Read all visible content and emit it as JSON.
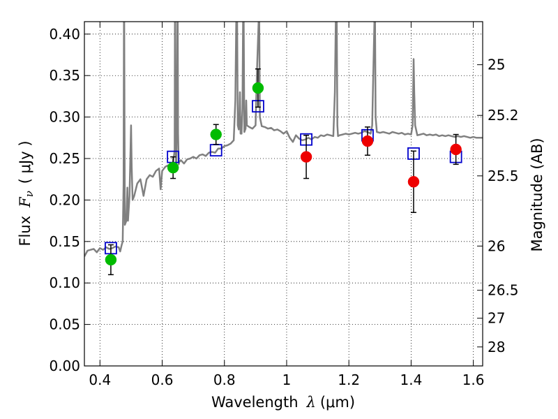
{
  "chart_data": {
    "type": "scatter",
    "xlabel": "Wavelength",
    "xlabel_symbol": "λ",
    "xlabel_unit": "(μm)",
    "ylabel": "Flux",
    "ylabel_symbol": "F",
    "ylabel_subscript": "ν",
    "ylabel_unit": "( μJy )",
    "y2label": "Magnitude (AB)",
    "xlim": [
      0.35,
      1.63
    ],
    "ylim": [
      0.0,
      0.415
    ],
    "xticks": [
      0.4,
      0.6,
      0.8,
      1.0,
      1.2,
      1.4,
      1.6
    ],
    "xtick_labels": [
      "0.4",
      "0.6",
      "0.8",
      "1",
      "1.2",
      "1.4",
      "1.6"
    ],
    "yticks": [
      0.0,
      0.05,
      0.1,
      0.15,
      0.2,
      0.25,
      0.3,
      0.35,
      0.4
    ],
    "ytick_labels": [
      "0.00",
      "0.05",
      "0.10",
      "0.15",
      "0.20",
      "0.25",
      "0.30",
      "0.35",
      "0.40"
    ],
    "y2_ticks": [
      {
        "label": "25",
        "flux": 0.3631
      },
      {
        "label": "25.2",
        "flux": 0.302
      },
      {
        "label": "25.5",
        "flux": 0.2291
      },
      {
        "label": "26",
        "flux": 0.1445
      },
      {
        "label": "26.5",
        "flux": 0.0912
      },
      {
        "label": "27",
        "flux": 0.0575
      },
      {
        "label": "28",
        "flux": 0.0229
      }
    ],
    "grid": true,
    "colors": {
      "spectrum": "#808080",
      "model_box": "#0000cc",
      "obs_optical": "#00bb00",
      "obs_nir": "#ee0000",
      "errorbar": "#000000"
    },
    "series": [
      {
        "type": "line",
        "points": [
          [
            0.35,
            0.132
          ],
          [
            0.36,
            0.139
          ],
          [
            0.37,
            0.14
          ],
          [
            0.38,
            0.141
          ],
          [
            0.39,
            0.137
          ],
          [
            0.4,
            0.142
          ],
          [
            0.41,
            0.14
          ],
          [
            0.42,
            0.143
          ],
          [
            0.43,
            0.141
          ],
          [
            0.44,
            0.142
          ],
          [
            0.45,
            0.144
          ],
          [
            0.46,
            0.143
          ],
          [
            0.465,
            0.138
          ],
          [
            0.47,
            0.146
          ],
          [
            0.473,
            0.15
          ],
          [
            0.476,
            0.22
          ],
          [
            0.477,
            0.415
          ],
          [
            0.478,
            0.415
          ],
          [
            0.479,
            0.3
          ],
          [
            0.48,
            0.17
          ],
          [
            0.485,
            0.175
          ],
          [
            0.488,
            0.215
          ],
          [
            0.49,
            0.175
          ],
          [
            0.495,
            0.205
          ],
          [
            0.5,
            0.29
          ],
          [
            0.502,
            0.24
          ],
          [
            0.505,
            0.2
          ],
          [
            0.51,
            0.205
          ],
          [
            0.52,
            0.22
          ],
          [
            0.53,
            0.225
          ],
          [
            0.54,
            0.205
          ],
          [
            0.55,
            0.225
          ],
          [
            0.56,
            0.23
          ],
          [
            0.57,
            0.228
          ],
          [
            0.58,
            0.235
          ],
          [
            0.59,
            0.238
          ],
          [
            0.595,
            0.213
          ],
          [
            0.6,
            0.235
          ],
          [
            0.61,
            0.24
          ],
          [
            0.62,
            0.242
          ],
          [
            0.63,
            0.24
          ],
          [
            0.635,
            0.245
          ],
          [
            0.64,
            0.26
          ],
          [
            0.641,
            0.415
          ],
          [
            0.642,
            0.415
          ],
          [
            0.643,
            0.27
          ],
          [
            0.645,
            0.238
          ],
          [
            0.647,
            0.3
          ],
          [
            0.649,
            0.415
          ],
          [
            0.65,
            0.415
          ],
          [
            0.651,
            0.28
          ],
          [
            0.653,
            0.243
          ],
          [
            0.655,
            0.246
          ],
          [
            0.66,
            0.248
          ],
          [
            0.67,
            0.244
          ],
          [
            0.68,
            0.249
          ],
          [
            0.69,
            0.25
          ],
          [
            0.7,
            0.252
          ],
          [
            0.71,
            0.25
          ],
          [
            0.72,
            0.254
          ],
          [
            0.73,
            0.255
          ],
          [
            0.74,
            0.253
          ],
          [
            0.75,
            0.257
          ],
          [
            0.76,
            0.258
          ],
          [
            0.77,
            0.257
          ],
          [
            0.78,
            0.262
          ],
          [
            0.79,
            0.262
          ],
          [
            0.8,
            0.265
          ],
          [
            0.81,
            0.266
          ],
          [
            0.82,
            0.268
          ],
          [
            0.83,
            0.272
          ],
          [
            0.835,
            0.32
          ],
          [
            0.838,
            0.415
          ],
          [
            0.841,
            0.415
          ],
          [
            0.843,
            0.29
          ],
          [
            0.846,
            0.285
          ],
          [
            0.848,
            0.3
          ],
          [
            0.85,
            0.33
          ],
          [
            0.852,
            0.28
          ],
          [
            0.855,
            0.28
          ],
          [
            0.858,
            0.31
          ],
          [
            0.86,
            0.415
          ],
          [
            0.862,
            0.415
          ],
          [
            0.864,
            0.282
          ],
          [
            0.868,
            0.286
          ],
          [
            0.87,
            0.32
          ],
          [
            0.872,
            0.29
          ],
          [
            0.88,
            0.288
          ],
          [
            0.89,
            0.286
          ],
          [
            0.9,
            0.29
          ],
          [
            0.905,
            0.36
          ],
          [
            0.91,
            0.415
          ],
          [
            0.912,
            0.415
          ],
          [
            0.914,
            0.3
          ],
          [
            0.92,
            0.289
          ],
          [
            0.93,
            0.288
          ],
          [
            0.94,
            0.286
          ],
          [
            0.95,
            0.287
          ],
          [
            0.96,
            0.284
          ],
          [
            0.97,
            0.285
          ],
          [
            0.98,
            0.283
          ],
          [
            0.99,
            0.28
          ],
          [
            1.0,
            0.283
          ],
          [
            1.01,
            0.275
          ],
          [
            1.02,
            0.27
          ],
          [
            1.03,
            0.278
          ],
          [
            1.04,
            0.274
          ],
          [
            1.05,
            0.272
          ],
          [
            1.06,
            0.273
          ],
          [
            1.07,
            0.275
          ],
          [
            1.08,
            0.273
          ],
          [
            1.09,
            0.276
          ],
          [
            1.1,
            0.275
          ],
          [
            1.11,
            0.278
          ],
          [
            1.12,
            0.277
          ],
          [
            1.13,
            0.279
          ],
          [
            1.14,
            0.278
          ],
          [
            1.15,
            0.277
          ],
          [
            1.155,
            0.33
          ],
          [
            1.158,
            0.415
          ],
          [
            1.161,
            0.415
          ],
          [
            1.163,
            0.29
          ],
          [
            1.165,
            0.277
          ],
          [
            1.17,
            0.278
          ],
          [
            1.18,
            0.279
          ],
          [
            1.19,
            0.28
          ],
          [
            1.2,
            0.279
          ],
          [
            1.21,
            0.28
          ],
          [
            1.22,
            0.281
          ],
          [
            1.23,
            0.28
          ],
          [
            1.24,
            0.281
          ],
          [
            1.25,
            0.283
          ],
          [
            1.26,
            0.282
          ],
          [
            1.27,
            0.28
          ],
          [
            1.275,
            0.29
          ],
          [
            1.28,
            0.38
          ],
          [
            1.282,
            0.415
          ],
          [
            1.284,
            0.415
          ],
          [
            1.286,
            0.3
          ],
          [
            1.29,
            0.282
          ],
          [
            1.3,
            0.281
          ],
          [
            1.31,
            0.282
          ],
          [
            1.32,
            0.281
          ],
          [
            1.33,
            0.28
          ],
          [
            1.34,
            0.282
          ],
          [
            1.35,
            0.281
          ],
          [
            1.36,
            0.28
          ],
          [
            1.37,
            0.281
          ],
          [
            1.38,
            0.279
          ],
          [
            1.39,
            0.28
          ],
          [
            1.4,
            0.279
          ],
          [
            1.405,
            0.29
          ],
          [
            1.408,
            0.37
          ],
          [
            1.41,
            0.33
          ],
          [
            1.413,
            0.29
          ],
          [
            1.42,
            0.278
          ],
          [
            1.43,
            0.279
          ],
          [
            1.44,
            0.28
          ],
          [
            1.45,
            0.278
          ],
          [
            1.46,
            0.279
          ],
          [
            1.47,
            0.278
          ],
          [
            1.48,
            0.279
          ],
          [
            1.49,
            0.277
          ],
          [
            1.5,
            0.278
          ],
          [
            1.51,
            0.277
          ],
          [
            1.52,
            0.278
          ],
          [
            1.53,
            0.277
          ],
          [
            1.54,
            0.276
          ],
          [
            1.55,
            0.277
          ],
          [
            1.56,
            0.276
          ],
          [
            1.57,
            0.277
          ],
          [
            1.58,
            0.276
          ],
          [
            1.59,
            0.275
          ],
          [
            1.6,
            0.276
          ],
          [
            1.61,
            0.275
          ],
          [
            1.62,
            0.275
          ],
          [
            1.63,
            0.275
          ]
        ]
      },
      {
        "type": "scatter",
        "marker": "square",
        "points": [
          [
            0.435,
            0.142
          ],
          [
            0.635,
            0.252
          ],
          [
            0.773,
            0.26
          ],
          [
            0.908,
            0.313
          ],
          [
            1.063,
            0.273
          ],
          [
            1.26,
            0.278
          ],
          [
            1.408,
            0.256
          ],
          [
            1.544,
            0.252
          ]
        ]
      },
      {
        "type": "scatter",
        "marker": "circle",
        "points": [
          {
            "x": 0.435,
            "y": 0.128,
            "err": 0.018,
            "color": "green"
          },
          {
            "x": 0.635,
            "y": 0.239,
            "err": 0.013,
            "color": "green"
          },
          {
            "x": 0.773,
            "y": 0.279,
            "err": 0.012,
            "color": "green"
          },
          {
            "x": 0.908,
            "y": 0.335,
            "err": 0.023,
            "color": "green"
          },
          {
            "x": 1.063,
            "y": 0.252,
            "err": 0.026,
            "color": "red"
          },
          {
            "x": 1.26,
            "y": 0.271,
            "err": 0.017,
            "color": "red"
          },
          {
            "x": 1.408,
            "y": 0.222,
            "err": 0.037,
            "color": "red"
          },
          {
            "x": 1.544,
            "y": 0.261,
            "err": 0.018,
            "color": "red"
          }
        ]
      }
    ]
  }
}
